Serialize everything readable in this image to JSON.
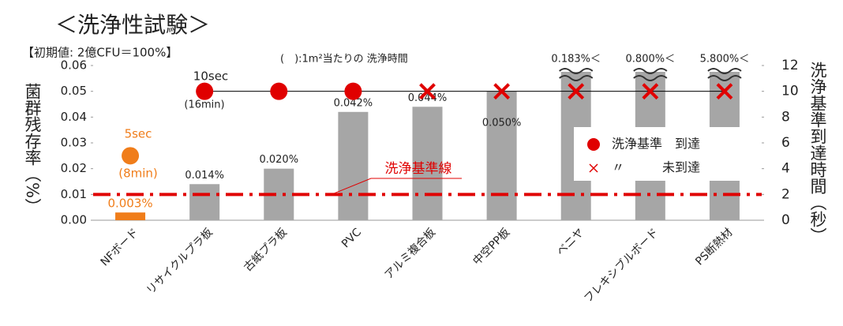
{
  "chart_data": {
    "type": "bar",
    "title": "＜洗浄性試験＞",
    "subtitle": "【初期値: 2億CFU＝100%】",
    "note": "(　):1m²当たりの 洗浄時間",
    "y_label": "菌群残存率（%）",
    "y2_label": "洗浄基準到達時間（秒）",
    "categories": [
      "NFボード",
      "リサイクルプラ板",
      "古紙プラ板",
      "PVC",
      "アルミ複合板",
      "中空PP板",
      "ベニヤ",
      "フレキシブルボード",
      "PS断熱材"
    ],
    "values": [
      0.003,
      0.014,
      0.02,
      0.042,
      0.044,
      0.05,
      0.183,
      0.8,
      5.8
    ],
    "value_labels": [
      "0.003%",
      "0.014%",
      "0.020%",
      "0.042%",
      "0.044%",
      "0.050%",
      "0.183%＜",
      "0.800%＜",
      "5.800%＜"
    ],
    "colors": [
      "#f07d1a",
      "#a6a6a6",
      "#a6a6a6",
      "#a6a6a6",
      "#a6a6a6",
      "#a6a6a6",
      "#a6a6a6",
      "#a6a6a6",
      "#a6a6a6"
    ],
    "ylim": [
      0,
      0.06
    ],
    "yticks": [
      {
        "value": 0,
        "label": "0.00"
      },
      {
        "value": 0.01,
        "label": "0.01"
      },
      {
        "value": 0.02,
        "label": "0.02"
      },
      {
        "value": 0.03,
        "label": "0.03"
      },
      {
        "value": 0.04,
        "label": "0.04"
      },
      {
        "value": 0.05,
        "label": "0.05"
      },
      {
        "value": 0.06,
        "label": "0.06"
      }
    ],
    "y2lim": [
      0,
      12
    ],
    "y2ticks": [
      0,
      2,
      4,
      6,
      8,
      10,
      12
    ],
    "series": [
      {
        "name": "洗浄基準　到達",
        "marker": "circle",
        "axis": "y2",
        "color": "#e00000",
        "colors": [
          "#f07d1a",
          "#e00000",
          "#e00000",
          "#e00000",
          null,
          null,
          null,
          null,
          null
        ],
        "values": [
          5,
          10,
          10,
          10,
          null,
          null,
          null,
          null,
          null
        ]
      },
      {
        "name": "〃　　　未到達",
        "marker": "cross",
        "axis": "y2",
        "color": "#e00000",
        "values": [
          null,
          null,
          null,
          null,
          10,
          10,
          10,
          10,
          10
        ]
      }
    ],
    "reference_line": {
      "value": 0.01,
      "label": "洗浄基準線",
      "color": "#e00000"
    },
    "annotations": [
      {
        "text": "10sec",
        "color": "#222222"
      },
      {
        "text": "(16min)",
        "color": "#222222"
      },
      {
        "text": "5sec",
        "color": "#f07d1a"
      },
      {
        "text": "(8min)",
        "color": "#f07d1a"
      }
    ]
  }
}
